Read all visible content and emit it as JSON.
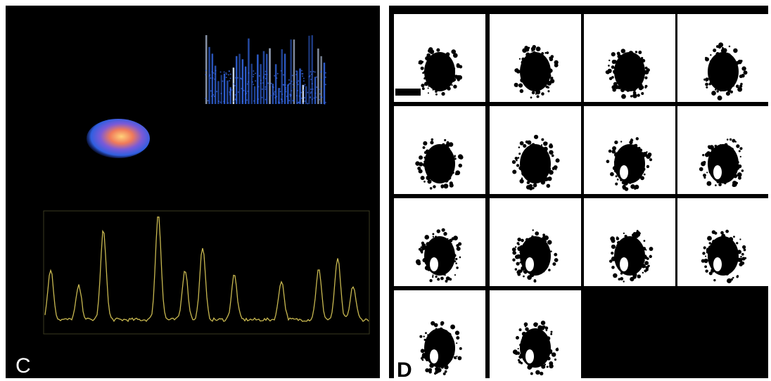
{
  "panels": [
    {
      "label": "C"
    },
    {
      "label": "D"
    }
  ]
}
